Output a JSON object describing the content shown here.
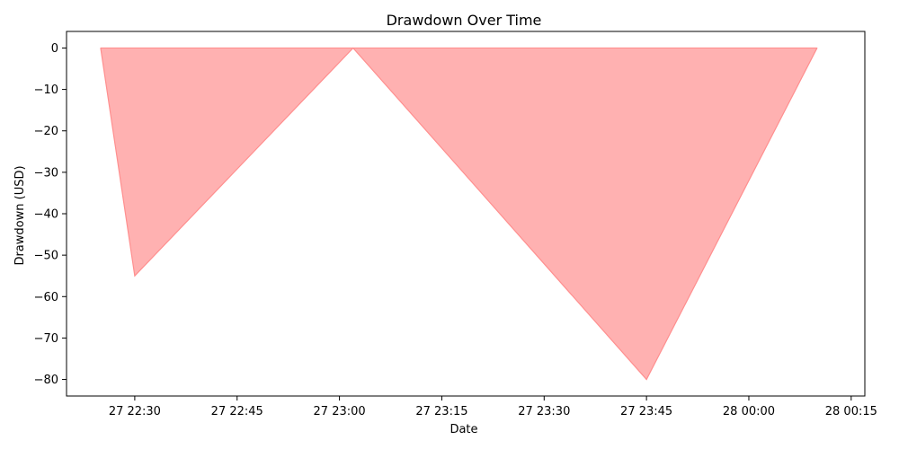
{
  "chart_data": {
    "type": "area",
    "title": "Drawdown Over Time",
    "xlabel": "Date",
    "ylabel": "Drawdown (USD)",
    "x": [
      "27 22:25",
      "27 22:30",
      "27 23:02",
      "27 23:45",
      "28 00:10"
    ],
    "values": [
      0,
      -55,
      0,
      -80,
      0
    ],
    "x_ticks": [
      "27 22:30",
      "27 22:45",
      "27 23:00",
      "27 23:15",
      "27 23:30",
      "27 23:45",
      "28 00:00",
      "28 00:15"
    ],
    "y_ticks": [
      0,
      -10,
      -20,
      -30,
      -40,
      -50,
      -60,
      -70,
      -80
    ],
    "xlim": [
      "27 22:20",
      "28 00:17"
    ],
    "ylim": [
      -84,
      4
    ],
    "fill_color": "#ffb1b1",
    "line_color": "#ff8f8f",
    "grid": false
  }
}
